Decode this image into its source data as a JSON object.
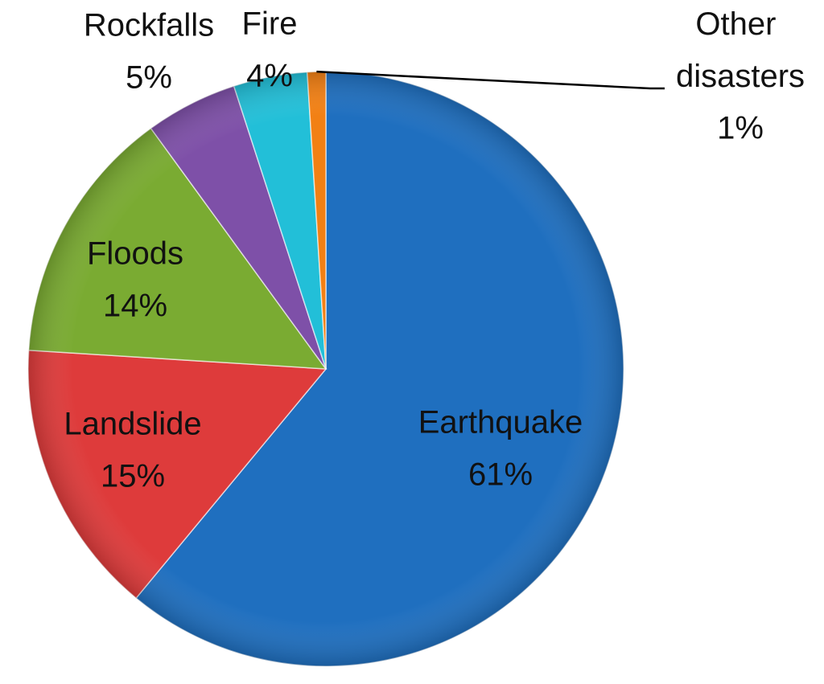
{
  "chart_data": {
    "type": "pie",
    "categories": [
      "Earthquake",
      "Landslide",
      "Floods",
      "Rockfalls",
      "Fire",
      "Other disasters"
    ],
    "values": [
      61,
      15,
      14,
      5,
      4,
      1
    ],
    "value_labels": [
      "61%",
      "15%",
      "14%",
      "5%",
      "4%",
      "1%"
    ],
    "colors": [
      "#1f6fbf",
      "#de3b3b",
      "#7aab32",
      "#7e50a8",
      "#22bfd8",
      "#f28014"
    ]
  }
}
